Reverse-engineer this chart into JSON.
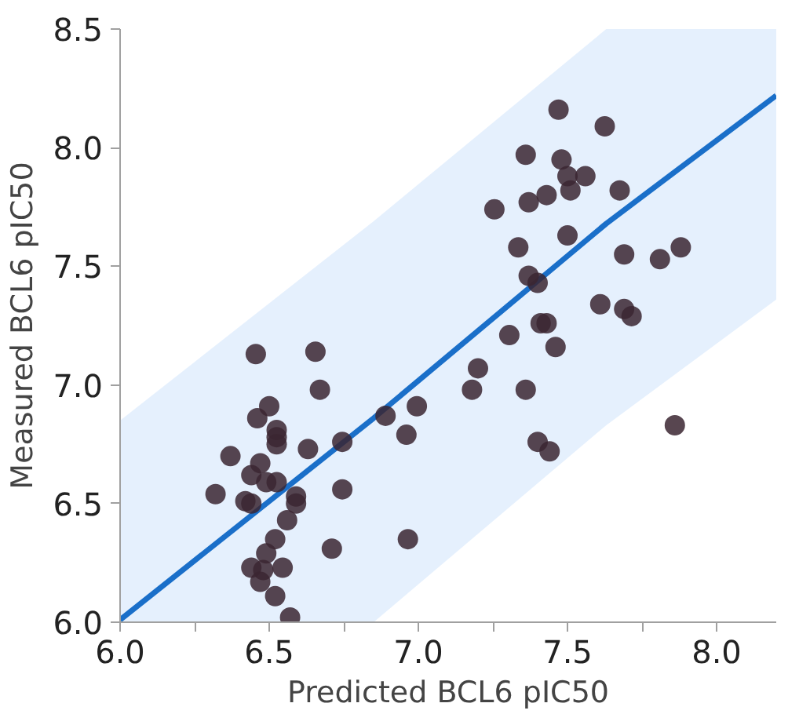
{
  "chart_data": {
    "type": "scatter",
    "xlabel": "Predicted BCL6 pIC50",
    "ylabel": "Measured BCL6 pIC50",
    "xlim": [
      6.0,
      8.2
    ],
    "ylim": [
      6.0,
      8.5
    ],
    "xticks": [
      {
        "value": 6,
        "label": "6.0"
      },
      {
        "value": 6.25,
        "label": null
      },
      6.5,
      {
        "value": 6.75,
        "label": null
      },
      {
        "value": 7,
        "label": "7.0"
      },
      {
        "value": 7.25,
        "label": null
      },
      7.5,
      {
        "value": 7.75,
        "label": null
      },
      {
        "value": 8,
        "label": "8.0"
      }
    ],
    "yticks": [
      {
        "value": 6,
        "label": "6.0"
      },
      6.5,
      {
        "value": 7,
        "label": "7.0"
      },
      7.5,
      {
        "value": 8,
        "label": "8.0"
      },
      8.5
    ],
    "grid": false,
    "series": [
      {
        "type": "line",
        "color": "#1a6fc9",
        "x": [
          6.0,
          6.85,
          7.63,
          8.2
        ],
        "values": [
          6.01,
          6.86,
          7.68,
          8.22
        ],
        "lower": [
          6.0,
          6.0,
          6.83,
          7.36
        ],
        "upper": [
          6.85,
          7.69,
          8.5,
          8.5
        ]
      },
      {
        "color": "#3b2631",
        "marker": "circle",
        "x": [
          6.455,
          6.655,
          6.67,
          6.5,
          6.46,
          6.525,
          6.525,
          6.525,
          6.63,
          6.37,
          6.47,
          6.44,
          6.49,
          6.525,
          6.32,
          6.42,
          6.44,
          6.59,
          6.59,
          6.745,
          6.56,
          6.52,
          6.49,
          6.71,
          6.44,
          6.48,
          6.545,
          6.47,
          6.52,
          6.57,
          6.745,
          6.89,
          6.995,
          6.96,
          6.965,
          7.18,
          7.2,
          7.305,
          7.36,
          7.4,
          7.44,
          7.46,
          7.41,
          7.43,
          7.37,
          7.4,
          7.335,
          7.5,
          7.255,
          7.37,
          7.43,
          7.36,
          7.48,
          7.5,
          7.51,
          7.56,
          7.47,
          7.625,
          7.675,
          7.69,
          7.81,
          7.88,
          7.61,
          7.69,
          7.715,
          7.86
        ],
        "values": [
          7.13,
          7.14,
          6.98,
          6.91,
          6.86,
          6.81,
          6.78,
          6.75,
          6.73,
          6.7,
          6.67,
          6.62,
          6.59,
          6.59,
          6.54,
          6.51,
          6.5,
          6.53,
          6.5,
          6.56,
          6.43,
          6.35,
          6.29,
          6.31,
          6.23,
          6.22,
          6.23,
          6.17,
          6.11,
          6.02,
          6.76,
          6.87,
          6.91,
          6.79,
          6.35,
          6.98,
          7.07,
          7.21,
          6.98,
          6.76,
          6.72,
          7.16,
          7.26,
          7.26,
          7.46,
          7.43,
          7.58,
          7.63,
          7.74,
          7.77,
          7.8,
          7.97,
          7.95,
          7.88,
          7.82,
          7.88,
          8.16,
          8.09,
          7.82,
          7.55,
          7.53,
          7.58,
          7.34,
          7.32,
          7.29,
          6.83
        ]
      }
    ]
  }
}
